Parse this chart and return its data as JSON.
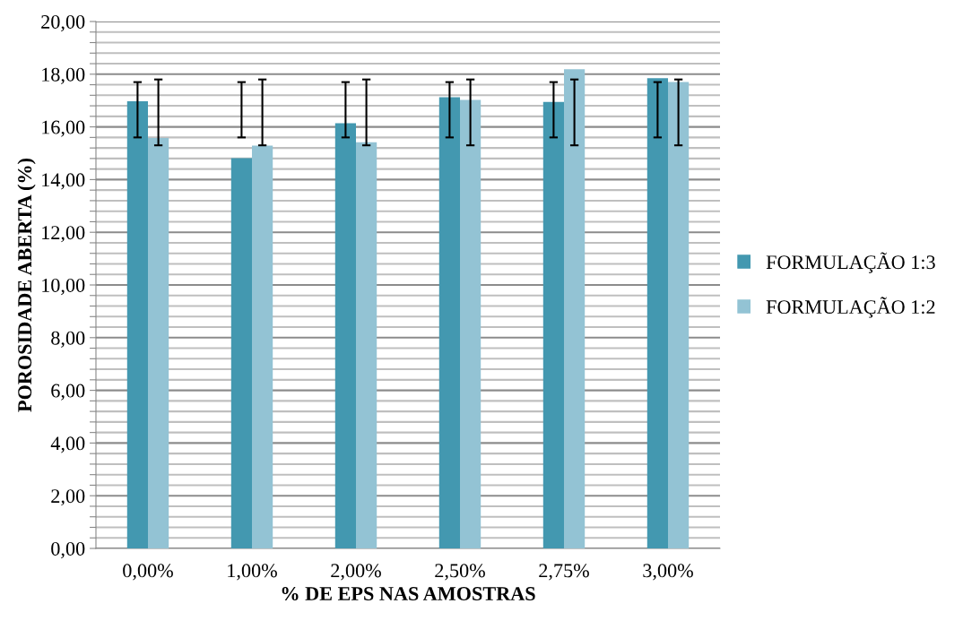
{
  "chart_data": {
    "type": "bar",
    "xlabel": "% DE EPS NAS AMOSTRAS",
    "ylabel": "POROSIDADE ABERTA (%)",
    "categories": [
      "0,00%",
      "1,00%",
      "2,00%",
      "2,50%",
      "2,75%",
      "3,00%"
    ],
    "series": [
      {
        "name": "FORMULAÇÃO 1:3",
        "color": "#4398b0",
        "values": [
          16.97,
          14.81,
          16.14,
          17.13,
          16.95,
          17.85
        ],
        "errors": [
          [
            15.6,
            17.7
          ],
          [
            15.6,
            17.7
          ],
          [
            15.6,
            17.7
          ],
          [
            15.6,
            17.7
          ],
          [
            15.6,
            17.7
          ],
          [
            15.6,
            17.7
          ]
        ]
      },
      {
        "name": "FORMULAÇÃO 1:2",
        "color": "#93c3d4",
        "values": [
          15.58,
          15.29,
          15.42,
          17.02,
          18.19,
          17.7
        ],
        "errors": [
          [
            15.3,
            17.8
          ],
          [
            15.3,
            17.8
          ],
          [
            15.3,
            17.8
          ],
          [
            15.3,
            17.8
          ],
          [
            15.3,
            17.8
          ],
          [
            15.3,
            17.8
          ]
        ]
      }
    ],
    "ylim": [
      0,
      20
    ],
    "yticks": [
      {
        "value": 0,
        "label": "0,00"
      },
      {
        "value": 0.4,
        "label": null
      },
      {
        "value": 0.8,
        "label": null
      },
      {
        "value": 1.2,
        "label": null
      },
      {
        "value": 1.6,
        "label": null
      },
      {
        "value": 2,
        "label": "2,00"
      },
      {
        "value": 2.4,
        "label": null
      },
      {
        "value": 2.8,
        "label": null
      },
      {
        "value": 3.2,
        "label": null
      },
      {
        "value": 3.6,
        "label": null
      },
      {
        "value": 4,
        "label": "4,00"
      },
      {
        "value": 4.4,
        "label": null
      },
      {
        "value": 4.8,
        "label": null
      },
      {
        "value": 5.2,
        "label": null
      },
      {
        "value": 5.6,
        "label": null
      },
      {
        "value": 6,
        "label": "6,00"
      },
      {
        "value": 6.4,
        "label": null
      },
      {
        "value": 6.8,
        "label": null
      },
      {
        "value": 7.2,
        "label": null
      },
      {
        "value": 7.6,
        "label": null
      },
      {
        "value": 8,
        "label": "8,00"
      },
      {
        "value": 8.4,
        "label": null
      },
      {
        "value": 8.8,
        "label": null
      },
      {
        "value": 9.2,
        "label": null
      },
      {
        "value": 9.6,
        "label": null
      },
      {
        "value": 10,
        "label": "10,00"
      },
      {
        "value": 10.4,
        "label": null
      },
      {
        "value": 10.8,
        "label": null
      },
      {
        "value": 11.2,
        "label": null
      },
      {
        "value": 11.6,
        "label": null
      },
      {
        "value": 12,
        "label": "12,00"
      },
      {
        "value": 12.4,
        "label": null
      },
      {
        "value": 12.8,
        "label": null
      },
      {
        "value": 13.2,
        "label": null
      },
      {
        "value": 13.6,
        "label": null
      },
      {
        "value": 14,
        "label": "14,00"
      },
      {
        "value": 14.4,
        "label": null
      },
      {
        "value": 14.8,
        "label": null
      },
      {
        "value": 15.2,
        "label": null
      },
      {
        "value": 15.6,
        "label": null
      },
      {
        "value": 16,
        "label": "16,00"
      },
      {
        "value": 16.4,
        "label": null
      },
      {
        "value": 16.8,
        "label": null
      },
      {
        "value": 17.2,
        "label": null
      },
      {
        "value": 17.6,
        "label": null
      },
      {
        "value": 18,
        "label": "18,00"
      },
      {
        "value": 18.4,
        "label": null
      },
      {
        "value": 18.8,
        "label": null
      },
      {
        "value": 19.2,
        "label": null
      },
      {
        "value": 19.6,
        "label": null
      },
      {
        "value": 20,
        "label": "20,00"
      }
    ],
    "grid": "y",
    "legend": "right"
  }
}
